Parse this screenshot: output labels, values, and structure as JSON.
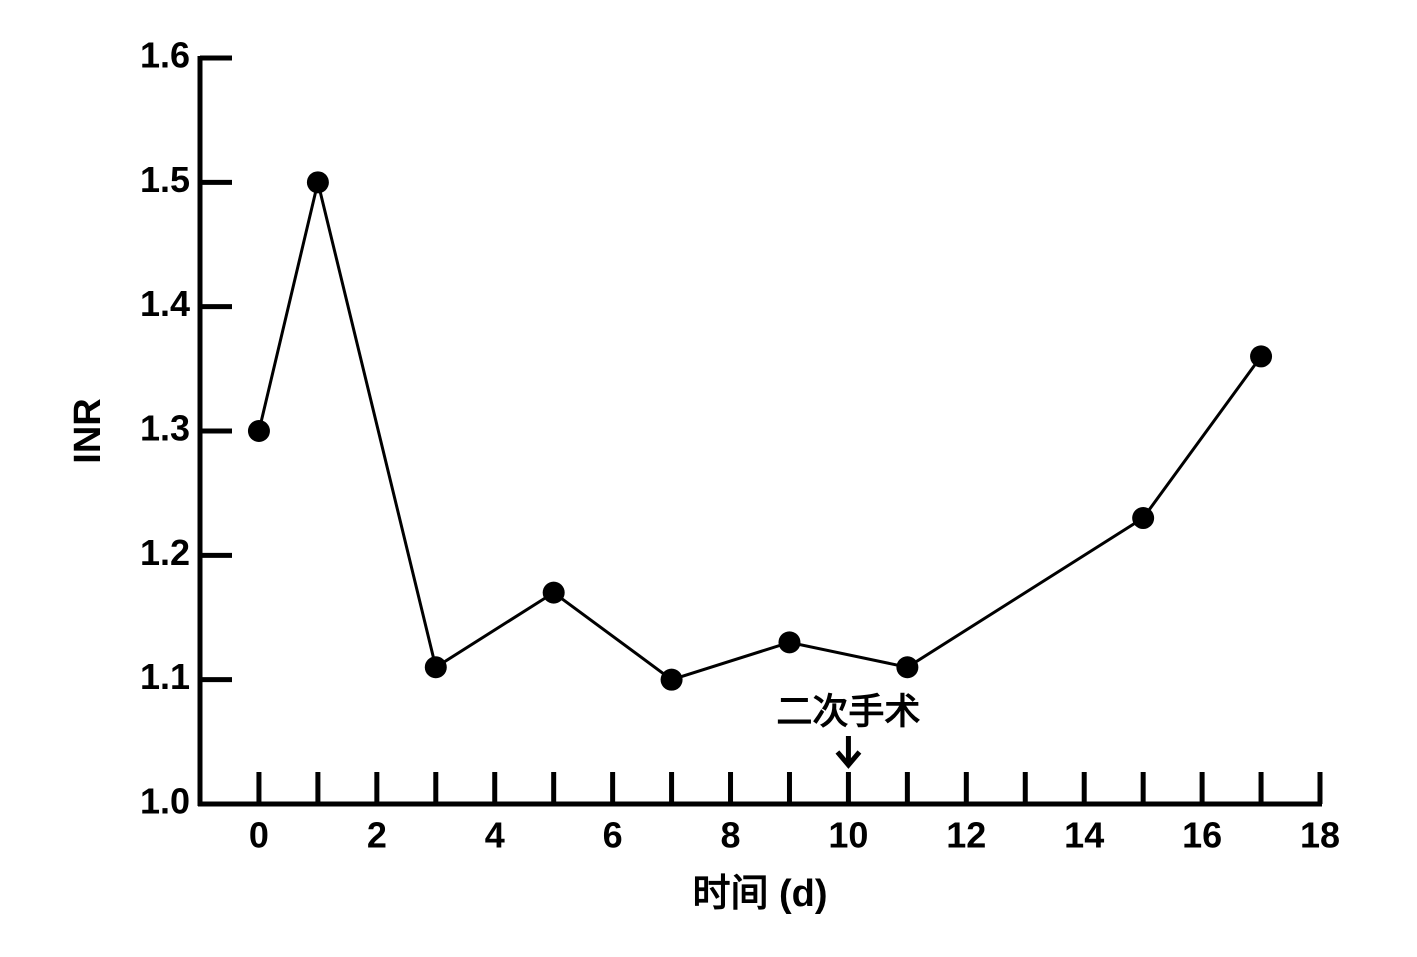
{
  "chart_data": {
    "type": "line",
    "x": [
      0,
      1,
      3,
      5,
      7,
      9,
      11,
      15,
      17
    ],
    "values": [
      1.3,
      1.5,
      1.11,
      1.17,
      1.1,
      1.13,
      1.11,
      1.23,
      1.36
    ],
    "color": "#000000",
    "xlim": [
      -1,
      18
    ],
    "xticks": [
      0,
      2,
      4,
      6,
      8,
      10,
      12,
      14,
      16,
      18
    ],
    "xminorticks": [
      1,
      3,
      5,
      7,
      9,
      11,
      13,
      15,
      17
    ],
    "ylim": [
      1.0,
      1.6
    ],
    "yticks": [
      {
        "value": 1.0,
        "label": "1.0"
      },
      1.1,
      1.2,
      1.3,
      1.4,
      1.5,
      1.6
    ],
    "xlabel": "时间 (d)",
    "ylabel": "INR",
    "annotation": {
      "text": "二次手术",
      "x": 10
    }
  }
}
